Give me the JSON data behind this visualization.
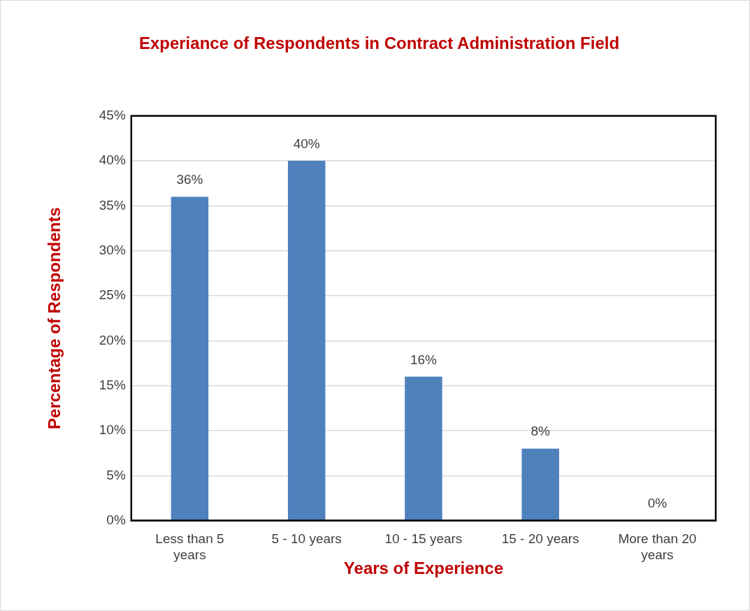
{
  "chart_data": {
    "type": "bar",
    "title": "Experiance of Respondents in Contract Administration Field",
    "xlabel": "Years of Experience",
    "ylabel": "Percentage of Respondents",
    "categories": [
      "Less than 5 years",
      "5 - 10 years",
      "10 - 15 years",
      "15 - 20 years",
      "More than 20 years"
    ],
    "values": [
      36,
      40,
      16,
      8,
      0
    ],
    "color": "#4f81bd",
    "value_labels": [
      "36%",
      "40%",
      "16%",
      "8%",
      "0%"
    ],
    "ylim": [
      0,
      45
    ],
    "yticks": [
      {
        "value": 0,
        "label": "0%"
      },
      {
        "value": 5,
        "label": "5%"
      },
      {
        "value": 10,
        "label": "10%"
      },
      {
        "value": 15,
        "label": "15%"
      },
      {
        "value": 20,
        "label": "20%"
      },
      {
        "value": 25,
        "label": "25%"
      },
      {
        "value": 30,
        "label": "30%"
      },
      {
        "value": 35,
        "label": "35%"
      },
      {
        "value": 40,
        "label": "40%"
      },
      {
        "value": 45,
        "label": "45%"
      }
    ],
    "grid": "y"
  }
}
